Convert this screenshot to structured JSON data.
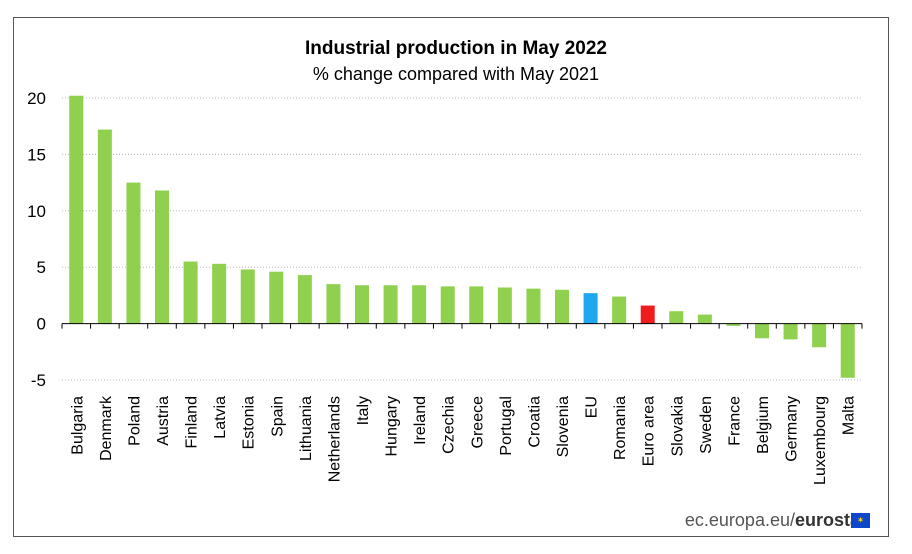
{
  "chart_data": {
    "type": "bar",
    "title": "Industrial production in May 2022",
    "subtitle": "% change compared with May 2021",
    "categories": [
      "Bulgaria",
      "Denmark",
      "Poland",
      "Austria",
      "Finland",
      "Latvia",
      "Estonia",
      "Spain",
      "Lithuania",
      "Netherlands",
      "Italy",
      "Hungary",
      "Ireland",
      "Czechia",
      "Greece",
      "Portugal",
      "Croatia",
      "Slovenia",
      "EU",
      "Romania",
      "Euro area",
      "Slovakia",
      "Sweden",
      "France",
      "Belgium",
      "Germany",
      "Luxembourg",
      "Malta"
    ],
    "values": [
      20.2,
      17.2,
      12.5,
      11.8,
      5.5,
      5.3,
      4.8,
      4.6,
      4.3,
      3.5,
      3.4,
      3.4,
      3.4,
      3.3,
      3.3,
      3.2,
      3.1,
      3.0,
      2.7,
      2.4,
      1.6,
      1.1,
      0.8,
      -0.2,
      -1.3,
      -1.4,
      -2.1,
      -4.8
    ],
    "colors": {
      "default": "#8fd14f",
      "EU": "#1fa7f0",
      "Euro area": "#ee1c1c"
    },
    "ylim": [
      -5,
      20
    ],
    "yticks": [
      20,
      15,
      10,
      5,
      0,
      -5
    ],
    "grid": true,
    "xlabel": "",
    "ylabel": ""
  },
  "footer": {
    "source_prefix": "ec.europa.eu/",
    "source_brand": "eurostat",
    "flag_icon": "eu-flag-icon"
  }
}
